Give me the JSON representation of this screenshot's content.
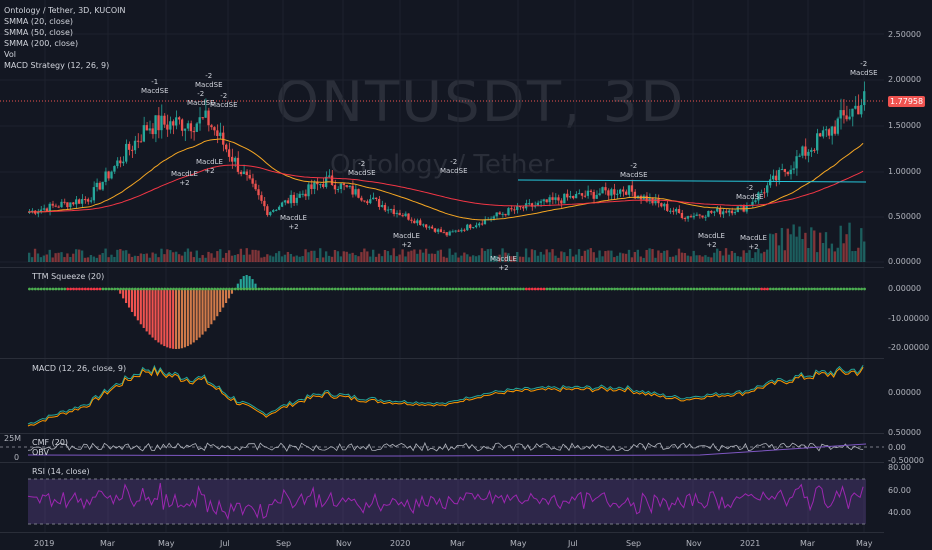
{
  "header": {
    "symbol_line": "Ontology / Tether, 3D, KUCOIN",
    "indicators": [
      "SMMA (20, close)",
      "SMMA (50, close)",
      "SMMA (200, close)",
      "Vol",
      "MACD Strategy (12, 26, 9)"
    ]
  },
  "watermark": {
    "ticker": "ONTUSDT, 3D",
    "name": "Ontology / Tether"
  },
  "last_price": "1.77958",
  "price_axis": [
    "2.50000",
    "2.00000",
    "1.50000",
    "1.00000",
    "0.50000",
    "0.00000"
  ],
  "panes": {
    "squeeze": {
      "label": "TTM Squeeze (20)",
      "axis": [
        "0.00000",
        "-10.00000",
        "-20.00000"
      ]
    },
    "macd": {
      "label": "MACD (12, 26, close, 9)",
      "axis": [
        "0.00000"
      ]
    },
    "cmf": {
      "label": "CMF (20)",
      "axis": [
        "0.50000",
        "0.00",
        "-0.50000"
      ],
      "left": [
        "25M",
        "0"
      ]
    },
    "obv": {
      "label": "OBV"
    },
    "rsi": {
      "label": "RSI (14, close)",
      "axis": [
        "80.00",
        "60.00",
        "40.00"
      ]
    }
  },
  "x_axis": [
    "2019",
    "Mar",
    "May",
    "Jul",
    "Sep",
    "Nov",
    "2020",
    "Mar",
    "May",
    "Jul",
    "Sep",
    "Nov",
    "2021",
    "Mar",
    "May"
  ],
  "signals": [
    {
      "text": "-1",
      "name": "MacdSE"
    },
    {
      "text": "-2",
      "name": "MacdSE"
    },
    {
      "text": "-2",
      "name": "MacdSE"
    },
    {
      "text": "-2",
      "name": "MacdSE"
    },
    {
      "text": "MacdLE",
      "name": "+2"
    },
    {
      "text": "MacdLE",
      "name": "+2"
    },
    {
      "text": "MacdLE",
      "name": "+2"
    },
    {
      "text": "-2",
      "name": "MacdSE"
    },
    {
      "text": "-2",
      "name": "MacdSE"
    },
    {
      "text": "MacdLE",
      "name": "+2"
    },
    {
      "text": "MacdLE",
      "name": "+2"
    },
    {
      "text": "-2",
      "name": "MacdSE"
    },
    {
      "text": "MacdLE",
      "name": "+2"
    },
    {
      "text": "-2",
      "name": "MacdSE"
    },
    {
      "text": "MacdLE",
      "name": "+2"
    },
    {
      "text": "-2",
      "name": "MacdSE"
    }
  ],
  "colors": {
    "up": "#26a69a",
    "down": "#ef5350",
    "smma20": "#f5a623",
    "smma50": "#f23645",
    "smma200": "#26c6da",
    "macd": "#26a69a",
    "signal": "#ff9800",
    "rsi": "#9c27b0",
    "bg": "#131722"
  },
  "chart_data": {
    "type": "line",
    "title": "Ontology / Tether, 3D, KUCOIN",
    "x": [
      "2019",
      "Mar",
      "May",
      "Jul",
      "Sep",
      "Nov",
      "2020",
      "Mar",
      "May",
      "Jul",
      "Sep",
      "Nov",
      "2021",
      "Mar",
      "May"
    ],
    "series": [
      {
        "name": "",
        "values": [
          0.55,
          0.7,
          1.5,
          1.55,
          0.55,
          0.9,
          0.6,
          0.3,
          0.55,
          0.7,
          0.8,
          0.5,
          0.6,
          1.2,
          1.78
        ]
      }
    ],
    "ylim": [
      0,
      2.6
    ]
  }
}
